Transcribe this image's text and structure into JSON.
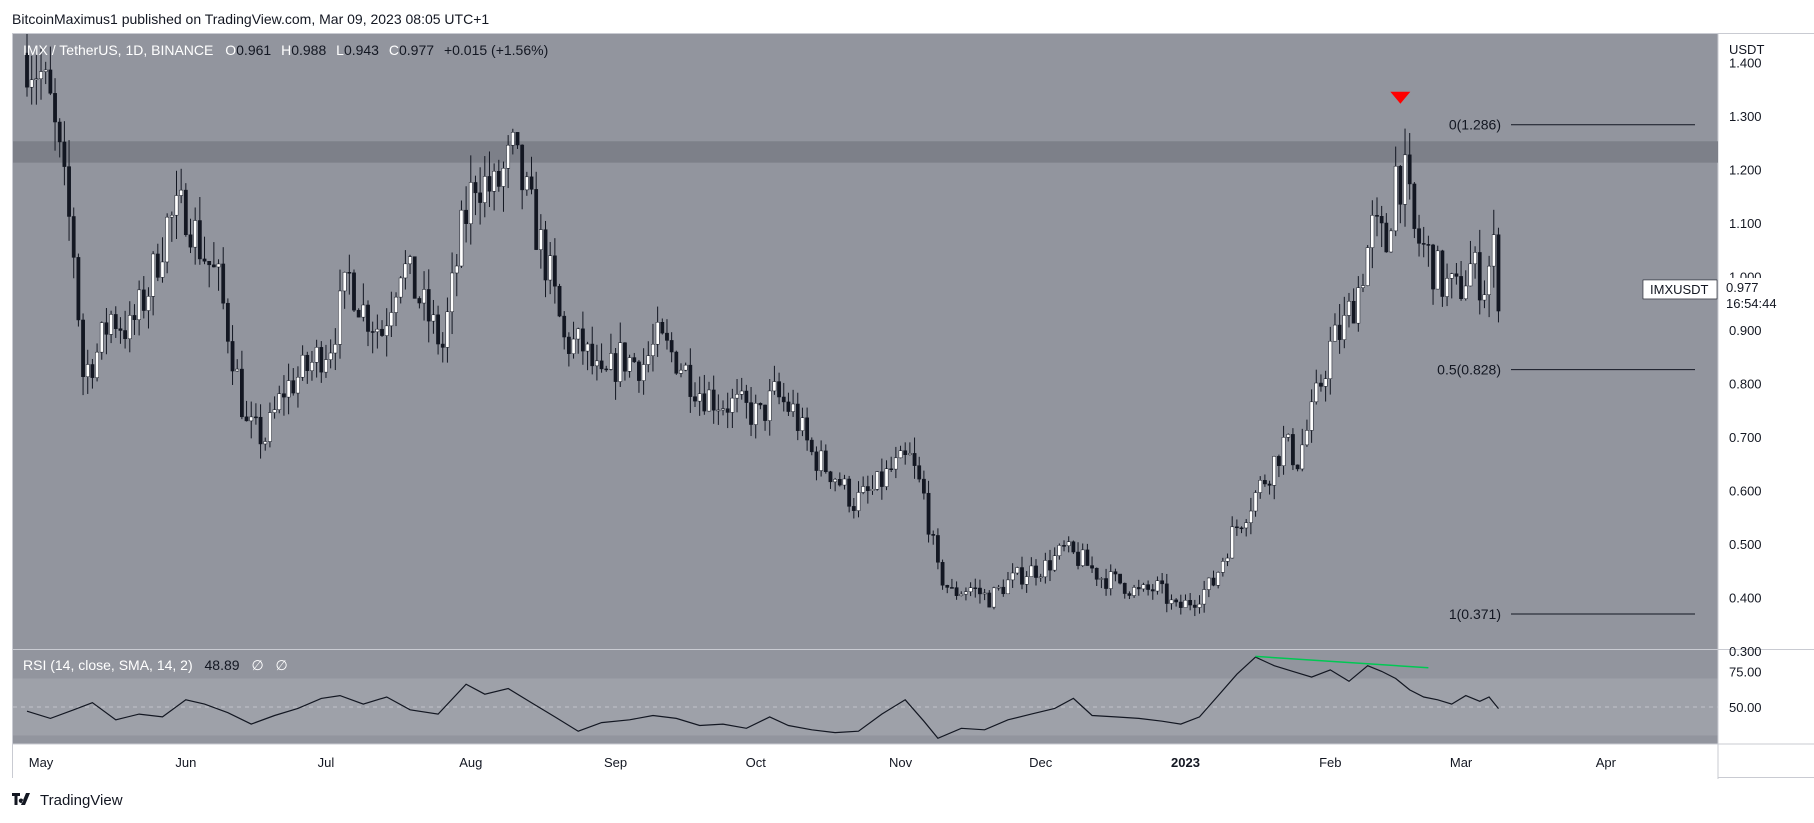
{
  "header": {
    "text": "BitcoinMaximus1 published on TradingView.com, Mar 09, 2023 08:05 UTC+1"
  },
  "footer": {
    "brand": "TradingView",
    "logo": "tradingview-logo-icon"
  },
  "colors": {
    "price_pane_bg": "#92959e",
    "rsi_pane_bg": "#92959e",
    "rsi_band_bg": "#9ea1a9",
    "resistance_band": "#7d8089",
    "candle_bull": "#ffffff",
    "candle_bear": "#131722",
    "signal_marker": "#ff0000",
    "divergence_line": "#00c853",
    "axis_text": "#131722"
  },
  "chart_data": [
    {
      "type": "candlestick",
      "symbol": "IMX / TetherUS, 1D, BINANCE",
      "ohlc_legend": [
        {
          "key": "O",
          "value": "0.961"
        },
        {
          "key": "H",
          "value": "0.988"
        },
        {
          "key": "L",
          "value": "0.943"
        },
        {
          "key": "C",
          "value": "0.977"
        }
      ],
      "change_text": "+0.015 (+1.56%)",
      "y_axis_unit": "USDT",
      "ylim": [
        0.3,
        1.45
      ],
      "y_ticks": [
        "1.400",
        "1.300",
        "1.200",
        "1.100",
        "1.000",
        "0.900",
        "0.800",
        "0.700",
        "0.600",
        "0.500",
        "0.400",
        "0.300"
      ],
      "x_ticks": [
        "May",
        "Jun",
        "Jul",
        "Aug",
        "Sep",
        "Oct",
        "Nov",
        "Dec",
        "2023",
        "Feb",
        "Mar",
        "Apr"
      ],
      "x_range": [
        "2022-04-25",
        "2023-04-25"
      ],
      "price_path": [
        [
          "2022-04-28",
          1.42
        ],
        [
          "2022-05-01",
          1.38
        ],
        [
          "2022-05-03",
          1.32
        ],
        [
          "2022-05-05",
          1.22
        ],
        [
          "2022-05-08",
          1.05
        ],
        [
          "2022-05-10",
          0.82
        ],
        [
          "2022-05-13",
          0.86
        ],
        [
          "2022-05-16",
          0.93
        ],
        [
          "2022-05-20",
          0.9
        ],
        [
          "2022-05-24",
          0.98
        ],
        [
          "2022-05-28",
          1.1
        ],
        [
          "2022-06-01",
          1.13
        ],
        [
          "2022-06-04",
          1.06
        ],
        [
          "2022-06-08",
          0.99
        ],
        [
          "2022-06-11",
          0.86
        ],
        [
          "2022-06-14",
          0.72
        ],
        [
          "2022-06-18",
          0.7
        ],
        [
          "2022-06-22",
          0.79
        ],
        [
          "2022-06-27",
          0.83
        ],
        [
          "2022-07-02",
          0.88
        ],
        [
          "2022-07-06",
          1.0
        ],
        [
          "2022-07-09",
          0.94
        ],
        [
          "2022-07-13",
          0.9
        ],
        [
          "2022-07-17",
          1.03
        ],
        [
          "2022-07-21",
          0.96
        ],
        [
          "2022-07-26",
          0.87
        ],
        [
          "2022-07-30",
          1.08
        ],
        [
          "2022-08-02",
          1.19
        ],
        [
          "2022-08-06",
          1.16
        ],
        [
          "2022-08-10",
          1.23
        ],
        [
          "2022-08-14",
          1.12
        ],
        [
          "2022-08-18",
          1.0
        ],
        [
          "2022-08-21",
          0.88
        ],
        [
          "2022-08-25",
          0.87
        ],
        [
          "2022-08-29",
          0.8
        ],
        [
          "2022-09-02",
          0.85
        ],
        [
          "2022-09-07",
          0.84
        ],
        [
          "2022-09-10",
          0.88
        ],
        [
          "2022-09-14",
          0.85
        ],
        [
          "2022-09-19",
          0.79
        ],
        [
          "2022-09-23",
          0.77
        ],
        [
          "2022-09-27",
          0.76
        ],
        [
          "2022-10-02",
          0.74
        ],
        [
          "2022-10-05",
          0.78
        ],
        [
          "2022-10-09",
          0.75
        ],
        [
          "2022-10-13",
          0.67
        ],
        [
          "2022-10-18",
          0.63
        ],
        [
          "2022-10-22",
          0.58
        ],
        [
          "2022-10-26",
          0.6
        ],
        [
          "2022-10-30",
          0.64
        ],
        [
          "2022-11-03",
          0.66
        ],
        [
          "2022-11-06",
          0.59
        ],
        [
          "2022-11-09",
          0.45
        ],
        [
          "2022-11-12",
          0.41
        ],
        [
          "2022-11-16",
          0.42
        ],
        [
          "2022-11-20",
          0.4
        ],
        [
          "2022-11-24",
          0.43
        ],
        [
          "2022-11-28",
          0.45
        ],
        [
          "2022-12-02",
          0.46
        ],
        [
          "2022-12-06",
          0.49
        ],
        [
          "2022-12-10",
          0.47
        ],
        [
          "2022-12-14",
          0.44
        ],
        [
          "2022-12-18",
          0.43
        ],
        [
          "2022-12-22",
          0.41
        ],
        [
          "2022-12-26",
          0.42
        ],
        [
          "2022-12-30",
          0.38
        ],
        [
          "2023-01-03",
          0.4
        ],
        [
          "2023-01-07",
          0.43
        ],
        [
          "2023-01-11",
          0.52
        ],
        [
          "2023-01-15",
          0.58
        ],
        [
          "2023-01-19",
          0.64
        ],
        [
          "2023-01-22",
          0.69
        ],
        [
          "2023-01-25",
          0.66
        ],
        [
          "2023-01-28",
          0.74
        ],
        [
          "2023-02-01",
          0.87
        ],
        [
          "2023-02-04",
          0.91
        ],
        [
          "2023-02-07",
          0.98
        ],
        [
          "2023-02-10",
          1.09
        ],
        [
          "2023-02-13",
          1.06
        ],
        [
          "2023-02-15",
          1.2
        ],
        [
          "2023-02-17",
          1.18
        ],
        [
          "2023-02-19",
          1.08
        ],
        [
          "2023-02-22",
          1.04
        ],
        [
          "2023-02-25",
          0.99
        ],
        [
          "2023-02-28",
          0.97
        ],
        [
          "2023-03-03",
          1.02
        ],
        [
          "2023-03-06",
          0.99
        ],
        [
          "2023-03-08",
          1.05
        ],
        [
          "2023-03-09",
          0.977
        ]
      ],
      "resistance_zone": [
        1.215,
        1.255
      ],
      "fibonacci_levels": [
        {
          "label": "0(1.286)",
          "value": 1.286
        },
        {
          "label": "0.5(0.828)",
          "value": 0.828
        },
        {
          "label": "1(0.371)",
          "value": 0.371
        }
      ],
      "signal_marker": {
        "date": "2023-02-16",
        "value": 1.286,
        "shape": "down-triangle"
      },
      "price_label": {
        "symbol": "IMXUSDT",
        "price": "0.977",
        "countdown": "16:54:44",
        "value": 0.977
      }
    },
    {
      "type": "line",
      "indicator": "RSI (14, close, SMA, 14, 2)",
      "value_text": "48.89",
      "extra_values": [
        "∅",
        "∅"
      ],
      "y_ticks": [
        "75.00",
        "50.00"
      ],
      "ylim": [
        24,
        90
      ],
      "band": [
        30,
        70
      ],
      "series": [
        {
          "values": [
            [
              "2022-04-28",
              47
            ],
            [
              "2022-05-03",
              42
            ],
            [
              "2022-05-08",
              48
            ],
            [
              "2022-05-12",
              53
            ],
            [
              "2022-05-17",
              41
            ],
            [
              "2022-05-22",
              45
            ],
            [
              "2022-05-27",
              43
            ],
            [
              "2022-06-01",
              55
            ],
            [
              "2022-06-05",
              52
            ],
            [
              "2022-06-10",
              46
            ],
            [
              "2022-06-15",
              38
            ],
            [
              "2022-06-20",
              44
            ],
            [
              "2022-06-25",
              49
            ],
            [
              "2022-06-30",
              56
            ],
            [
              "2022-07-04",
              58
            ],
            [
              "2022-07-09",
              52
            ],
            [
              "2022-07-14",
              57
            ],
            [
              "2022-07-19",
              48
            ],
            [
              "2022-07-25",
              45
            ],
            [
              "2022-07-31",
              66
            ],
            [
              "2022-08-04",
              59
            ],
            [
              "2022-08-09",
              63
            ],
            [
              "2022-08-14",
              53
            ],
            [
              "2022-08-19",
              43
            ],
            [
              "2022-08-24",
              33
            ],
            [
              "2022-08-29",
              39
            ],
            [
              "2022-09-04",
              41
            ],
            [
              "2022-09-09",
              44
            ],
            [
              "2022-09-14",
              42
            ],
            [
              "2022-09-19",
              37
            ],
            [
              "2022-09-24",
              38
            ],
            [
              "2022-09-29",
              35
            ],
            [
              "2022-10-04",
              43
            ],
            [
              "2022-10-08",
              37
            ],
            [
              "2022-10-13",
              34
            ],
            [
              "2022-10-18",
              32
            ],
            [
              "2022-10-23",
              33
            ],
            [
              "2022-10-28",
              45
            ],
            [
              "2022-11-02",
              55
            ],
            [
              "2022-11-06",
              40
            ],
            [
              "2022-11-09",
              28
            ],
            [
              "2022-11-14",
              35
            ],
            [
              "2022-11-19",
              34
            ],
            [
              "2022-11-24",
              41
            ],
            [
              "2022-11-29",
              45
            ],
            [
              "2022-12-04",
              49
            ],
            [
              "2022-12-08",
              56
            ],
            [
              "2022-12-12",
              44
            ],
            [
              "2022-12-17",
              43
            ],
            [
              "2022-12-22",
              42
            ],
            [
              "2022-12-27",
              40
            ],
            [
              "2022-12-31",
              38
            ],
            [
              "2023-01-04",
              43
            ],
            [
              "2023-01-08",
              58
            ],
            [
              "2023-01-12",
              73
            ],
            [
              "2023-01-16",
              85
            ],
            [
              "2023-01-20",
              79
            ],
            [
              "2023-01-24",
              75
            ],
            [
              "2023-01-28",
              71
            ],
            [
              "2023-02-01",
              76
            ],
            [
              "2023-02-05",
              68
            ],
            [
              "2023-02-09",
              79
            ],
            [
              "2023-02-12",
              75
            ],
            [
              "2023-02-15",
              70
            ],
            [
              "2023-02-18",
              62
            ],
            [
              "2023-02-21",
              57
            ],
            [
              "2023-02-24",
              55
            ],
            [
              "2023-02-27",
              52
            ],
            [
              "2023-03-02",
              58
            ],
            [
              "2023-03-05",
              54
            ],
            [
              "2023-03-07",
              57
            ],
            [
              "2023-03-09",
              48.89
            ]
          ]
        }
      ],
      "divergence_line": {
        "from": [
          "2023-01-16",
          85.5
        ],
        "to": [
          "2023-02-22",
          77.5
        ]
      }
    }
  ]
}
